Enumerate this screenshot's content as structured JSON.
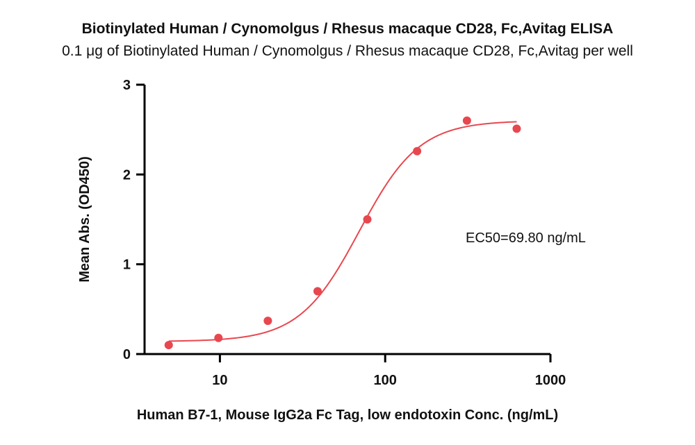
{
  "chart_data": {
    "type": "scatter",
    "title": "Biotinylated Human / Cynomolgus / Rhesus macaque CD28, Fc,Avitag ELISA",
    "subtitle": "0.1 μg of Biotinylated Human / Cynomolgus / Rhesus macaque CD28, Fc,Avitag per well",
    "xlabel": "Human B7-1, Mouse IgG2a Fc Tag, low endotoxin Conc. (ng/mL)",
    "ylabel": "Mean Abs. (OD450)",
    "xscale": "log",
    "xlim": [
      3.5,
      1000
    ],
    "ylim": [
      0,
      3
    ],
    "xticks": [
      10,
      100,
      1000
    ],
    "xtick_labels": [
      "10",
      "100",
      "1000"
    ],
    "yticks": [
      0,
      1,
      2,
      3
    ],
    "ytick_labels": [
      "0",
      "1",
      "2",
      "3"
    ],
    "grid": false,
    "color": "#e8474f",
    "series": [
      {
        "name": "",
        "x": [
          4.9,
          9.8,
          19.5,
          39,
          78,
          156,
          312.5,
          625
        ],
        "y": [
          0.1,
          0.18,
          0.37,
          0.7,
          1.5,
          2.26,
          2.6,
          2.51
        ]
      }
    ],
    "fit": {
      "model": "4PL",
      "bottom": 0.14,
      "top": 2.6,
      "ec50": 69.8,
      "hill": 2.4,
      "x_range": [
        4.9,
        625
      ]
    },
    "annotation": "EC50=69.80 ng/mL"
  }
}
